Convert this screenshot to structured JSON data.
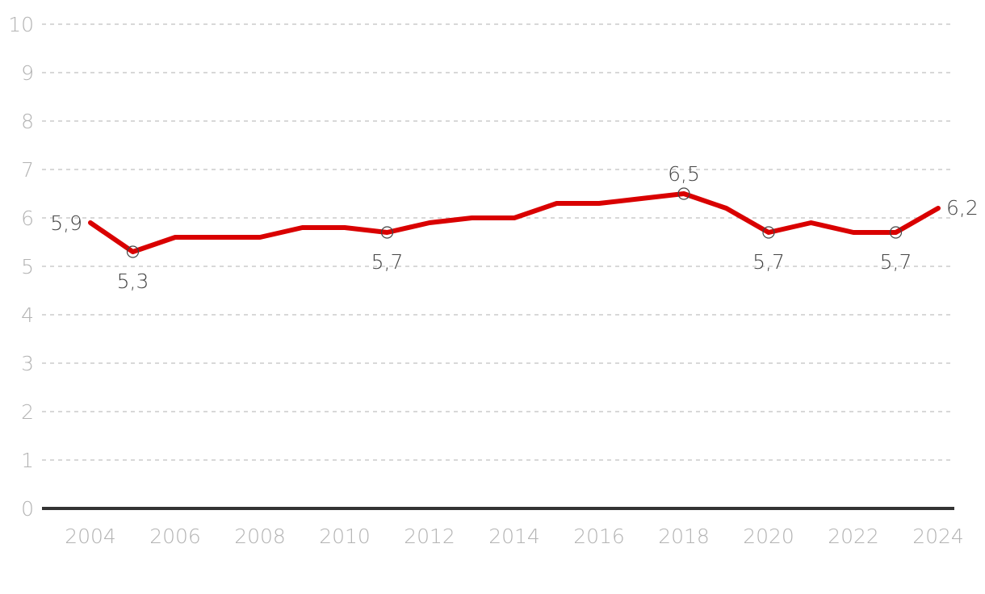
{
  "chart_data": {
    "type": "line",
    "title": "",
    "xlabel": "",
    "ylabel": "",
    "ylim": [
      0,
      10
    ],
    "y_ticks": [
      "0",
      "1",
      "2",
      "3",
      "4",
      "5",
      "6",
      "7",
      "8",
      "9",
      "10"
    ],
    "x_ticks": [
      "2004",
      "2006",
      "2008",
      "2010",
      "2012",
      "2014",
      "2016",
      "2018",
      "2020",
      "2022",
      "2024"
    ],
    "grid": true,
    "legend": "none",
    "series": [
      {
        "color": "#d90000",
        "x": [
          2004,
          2005,
          2006,
          2007,
          2008,
          2009,
          2010,
          2011,
          2012,
          2013,
          2014,
          2015,
          2016,
          2017,
          2018,
          2019,
          2020,
          2021,
          2022,
          2023,
          2024
        ],
        "values": [
          5.9,
          5.3,
          5.6,
          5.6,
          5.6,
          5.8,
          5.8,
          5.7,
          5.9,
          6.0,
          6.0,
          6.3,
          6.3,
          6.4,
          6.5,
          6.2,
          5.7,
          5.9,
          5.7,
          5.7,
          6.2
        ]
      }
    ],
    "data_labels": [
      {
        "x": 2004,
        "y": 5.9,
        "text": "5,9",
        "position": "left"
      },
      {
        "x": 2005,
        "y": 5.3,
        "text": "5,3",
        "position": "below",
        "marker": true
      },
      {
        "x": 2011,
        "y": 5.7,
        "text": "5,7",
        "position": "below",
        "marker": true
      },
      {
        "x": 2018,
        "y": 6.5,
        "text": "6,5",
        "position": "above",
        "marker": true
      },
      {
        "x": 2020,
        "y": 5.7,
        "text": "5,7",
        "position": "below",
        "marker": true
      },
      {
        "x": 2023,
        "y": 5.7,
        "text": "5,7",
        "position": "below",
        "marker": true
      },
      {
        "x": 2024,
        "y": 6.2,
        "text": "6,2",
        "position": "right"
      }
    ]
  }
}
